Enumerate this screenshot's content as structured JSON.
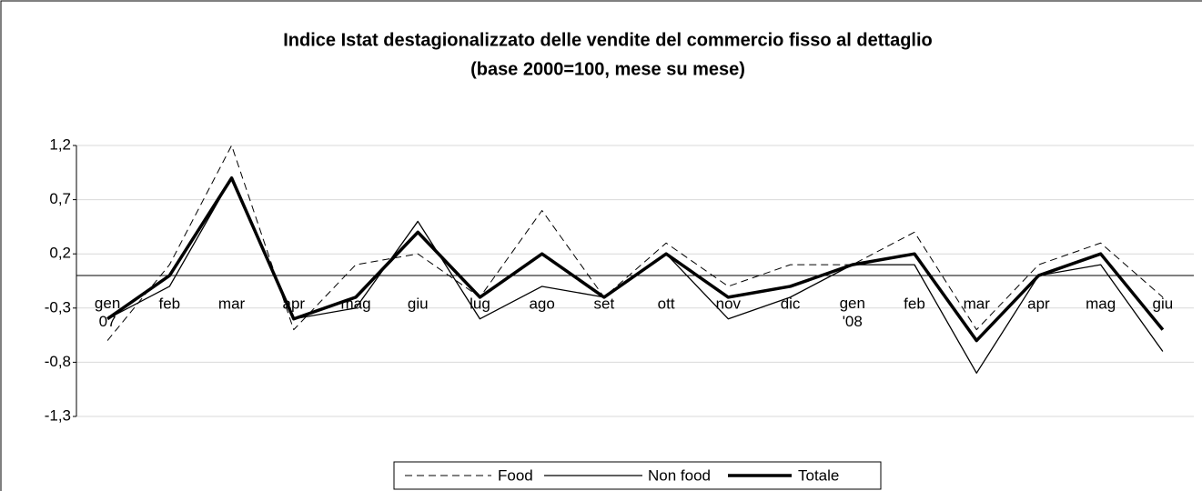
{
  "chart_data": {
    "type": "line",
    "title": "Indice Istat destagionalizzato delle vendite del commercio fisso al dettaglio",
    "subtitle": "(base 2000=100, mese su mese)",
    "categories": [
      "gen 07",
      "feb",
      "mar",
      "apr",
      "mag",
      "giu",
      "lug",
      "ago",
      "set",
      "ott",
      "nov",
      "dic",
      "gen '08",
      "feb",
      "mar",
      "apr",
      "mag",
      "giu"
    ],
    "series": [
      {
        "name": "Food",
        "color": "#000000",
        "line_style": "dashed",
        "linewidth": 1,
        "values": [
          -0.6,
          0.1,
          1.2,
          -0.5,
          0.1,
          0.2,
          -0.2,
          0.6,
          -0.2,
          0.3,
          -0.1,
          0.1,
          0.1,
          0.4,
          -0.5,
          0.1,
          0.3,
          -0.2
        ]
      },
      {
        "name": "Non food",
        "color": "#000000",
        "line_style": "solid",
        "linewidth": 1.3,
        "values": [
          -0.4,
          -0.1,
          0.9,
          -0.4,
          -0.3,
          0.5,
          -0.4,
          -0.1,
          -0.2,
          0.2,
          -0.4,
          -0.2,
          0.1,
          0.1,
          -0.9,
          0.0,
          0.1,
          -0.7
        ]
      },
      {
        "name": "Totale",
        "color": "#000000",
        "line_style": "solid",
        "linewidth": 3.5,
        "values": [
          -0.4,
          0.0,
          0.9,
          -0.4,
          -0.2,
          0.4,
          -0.2,
          0.2,
          -0.2,
          0.2,
          -0.2,
          -0.1,
          0.1,
          0.2,
          -0.6,
          0.0,
          0.2,
          -0.5
        ]
      }
    ],
    "ylim": [
      -1.3,
      1.2
    ],
    "yticks": [
      {
        "value": -1.3,
        "label": "-1,3"
      },
      {
        "value": -0.8,
        "label": "-0,8"
      },
      {
        "value": -0.3,
        "label": "-0,3"
      },
      {
        "value": 0.2,
        "label": "0,2"
      },
      {
        "value": 0.7,
        "label": "0,7"
      },
      {
        "value": 1.2,
        "label": "1,2"
      }
    ],
    "grid": true,
    "legend": "bottom"
  }
}
